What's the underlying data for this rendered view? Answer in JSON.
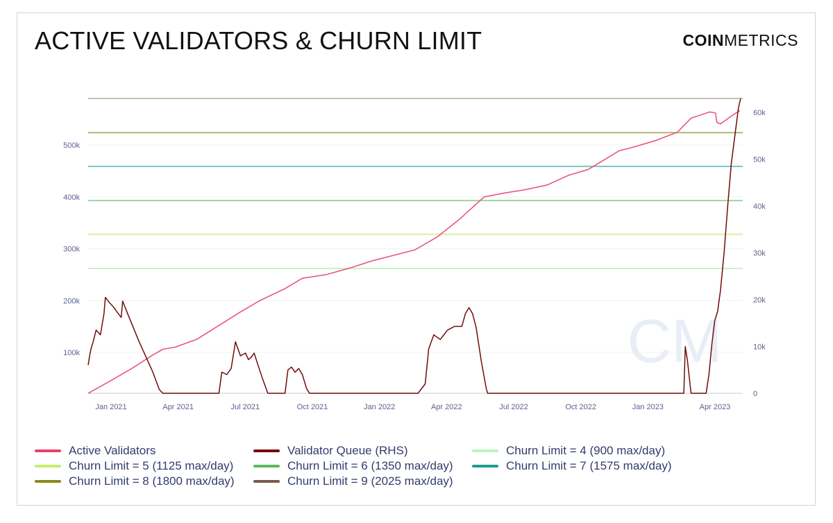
{
  "header": {
    "title": "ACTIVE VALIDATORS & CHURN LIMIT",
    "brand_bold": "COIN",
    "brand_light": "METRICS"
  },
  "watermark": "CM",
  "chart_data": {
    "type": "line",
    "x_tick_labels": [
      "Jan 2021",
      "Apr 2021",
      "Jul 2021",
      "Oct 2021",
      "Jan 2022",
      "Apr 2022",
      "Jul 2022",
      "Oct 2022",
      "Jan 2023",
      "Apr 2023"
    ],
    "x_range": [
      "2020-12-01",
      "2023-05-31"
    ],
    "y_left": {
      "label": "",
      "range": [
        21000,
        590000
      ],
      "ticks": [
        100000,
        200000,
        300000,
        400000,
        500000
      ],
      "tick_labels": [
        "100k",
        "200k",
        "300k",
        "400k",
        "500k"
      ]
    },
    "y_right": {
      "label": "",
      "range": [
        0,
        63000
      ],
      "ticks": [
        0,
        10000,
        20000,
        30000,
        40000,
        50000,
        60000
      ],
      "tick_labels": [
        "0",
        "10k",
        "20k",
        "30k",
        "40k",
        "50k",
        "60k"
      ]
    },
    "grid": true,
    "legend_placement": "bottom",
    "series": [
      {
        "name": "Active Validators",
        "axis": "left",
        "color": "#e8567c",
        "points": [
          [
            "2020-12-01",
            21000
          ],
          [
            "2021-01-01",
            45000
          ],
          [
            "2021-02-01",
            70000
          ],
          [
            "2021-03-01",
            95000
          ],
          [
            "2021-03-15",
            106000
          ],
          [
            "2021-04-01",
            110000
          ],
          [
            "2021-05-01",
            125000
          ],
          [
            "2021-06-01",
            152000
          ],
          [
            "2021-07-01",
            178000
          ],
          [
            "2021-07-28",
            200000
          ],
          [
            "2021-09-01",
            223000
          ],
          [
            "2021-09-25",
            243000
          ],
          [
            "2021-10-28",
            250000
          ],
          [
            "2021-12-01",
            263000
          ],
          [
            "2022-01-01",
            277000
          ],
          [
            "2022-02-01",
            288000
          ],
          [
            "2022-03-01",
            298000
          ],
          [
            "2022-04-01",
            323000
          ],
          [
            "2022-05-01",
            356000
          ],
          [
            "2022-06-05",
            400000
          ],
          [
            "2022-07-01",
            407000
          ],
          [
            "2022-08-01",
            414000
          ],
          [
            "2022-09-01",
            423000
          ],
          [
            "2022-10-01",
            442000
          ],
          [
            "2022-10-28",
            453000
          ],
          [
            "2022-11-15",
            468000
          ],
          [
            "2022-12-10",
            489000
          ],
          [
            "2023-01-01",
            497000
          ],
          [
            "2023-02-01",
            510000
          ],
          [
            "2023-03-01",
            525000
          ],
          [
            "2023-03-20",
            552000
          ],
          [
            "2023-04-15",
            564000
          ],
          [
            "2023-04-23",
            562000
          ],
          [
            "2023-04-25",
            544000
          ],
          [
            "2023-04-30",
            541000
          ],
          [
            "2023-05-15",
            556000
          ],
          [
            "2023-05-27",
            567000
          ]
        ]
      },
      {
        "name": "Validator Queue (RHS)",
        "axis": "right",
        "color": "#6e0c0c",
        "points": [
          [
            "2020-12-01",
            6000
          ],
          [
            "2020-12-03",
            8000
          ],
          [
            "2020-12-05",
            9500
          ],
          [
            "2020-12-08",
            11000
          ],
          [
            "2020-12-12",
            13500
          ],
          [
            "2020-12-18",
            12500
          ],
          [
            "2020-12-23",
            17000
          ],
          [
            "2020-12-25",
            20500
          ],
          [
            "2020-12-30",
            19500
          ],
          [
            "2021-01-05",
            18500
          ],
          [
            "2021-01-12",
            17000
          ],
          [
            "2021-01-16",
            16200
          ],
          [
            "2021-01-18",
            19700
          ],
          [
            "2021-01-25",
            17000
          ],
          [
            "2021-02-10",
            11000
          ],
          [
            "2021-03-01",
            4500
          ],
          [
            "2021-03-10",
            800
          ],
          [
            "2021-03-15",
            0
          ],
          [
            "2021-06-01",
            0
          ],
          [
            "2021-06-05",
            4500
          ],
          [
            "2021-06-12",
            4000
          ],
          [
            "2021-06-18",
            5300
          ],
          [
            "2021-06-24",
            11000
          ],
          [
            "2021-07-01",
            8000
          ],
          [
            "2021-07-08",
            8600
          ],
          [
            "2021-07-12",
            7200
          ],
          [
            "2021-07-16",
            7700
          ],
          [
            "2021-07-20",
            8600
          ],
          [
            "2021-07-25",
            6200
          ],
          [
            "2021-08-01",
            3000
          ],
          [
            "2021-08-08",
            0
          ],
          [
            "2021-09-01",
            0
          ],
          [
            "2021-09-05",
            5000
          ],
          [
            "2021-09-10",
            5600
          ],
          [
            "2021-09-15",
            4500
          ],
          [
            "2021-09-20",
            5300
          ],
          [
            "2021-09-25",
            4000
          ],
          [
            "2021-10-01",
            1000
          ],
          [
            "2021-10-05",
            0
          ],
          [
            "2022-03-05",
            0
          ],
          [
            "2022-03-15",
            2000
          ],
          [
            "2022-03-20",
            9500
          ],
          [
            "2022-03-27",
            12500
          ],
          [
            "2022-04-05",
            11500
          ],
          [
            "2022-04-15",
            13500
          ],
          [
            "2022-04-25",
            14300
          ],
          [
            "2022-05-05",
            14300
          ],
          [
            "2022-05-10",
            17000
          ],
          [
            "2022-05-15",
            18300
          ],
          [
            "2022-05-20",
            17000
          ],
          [
            "2022-05-25",
            14000
          ],
          [
            "2022-06-01",
            7000
          ],
          [
            "2022-06-08",
            1000
          ],
          [
            "2022-06-10",
            0
          ],
          [
            "2023-03-10",
            0
          ],
          [
            "2023-03-12",
            10000
          ],
          [
            "2023-03-15",
            7000
          ],
          [
            "2023-03-20",
            0
          ],
          [
            "2023-04-10",
            0
          ],
          [
            "2023-04-14",
            4000
          ],
          [
            "2023-04-18",
            10500
          ],
          [
            "2023-04-22",
            15500
          ],
          [
            "2023-04-26",
            17500
          ],
          [
            "2023-04-30",
            22000
          ],
          [
            "2023-05-05",
            30000
          ],
          [
            "2023-05-10",
            40000
          ],
          [
            "2023-05-15",
            49000
          ],
          [
            "2023-05-20",
            55000
          ],
          [
            "2023-05-25",
            61000
          ],
          [
            "2023-05-28",
            63000
          ]
        ]
      }
    ],
    "reference_lines": [
      {
        "name": "Churn Limit = 4 (900 max/day)",
        "value": 262000,
        "color": "#c8f3c8"
      },
      {
        "name": "Churn Limit = 5 (1125 max/day)",
        "value": 328000,
        "color": "#dcefa0"
      },
      {
        "name": "Churn Limit = 6 (1350 max/day)",
        "value": 393000,
        "color": "#9fd4a0"
      },
      {
        "name": "Churn Limit = 7 (1575 max/day)",
        "value": 459000,
        "color": "#7cc4c4"
      },
      {
        "name": "Churn Limit = 8 (1800 max/day)",
        "value": 524000,
        "color": "#b5b47a"
      },
      {
        "name": "Churn Limit = 9 (2025 max/day)",
        "value": 590000,
        "color": "#c9bfb2"
      }
    ],
    "legend": [
      {
        "label": "Active Validators",
        "color": "#e8416e"
      },
      {
        "label": "Validator Queue (RHS)",
        "color": "#7a0a0a"
      },
      {
        "label": "Churn Limit = 4 (900 max/day)",
        "color": "#b9f5c3"
      },
      {
        "label": "Churn Limit = 5 (1125 max/day)",
        "color": "#c7ef6a"
      },
      {
        "label": "Churn Limit = 6 (1350 max/day)",
        "color": "#5cb85c"
      },
      {
        "label": "Churn Limit = 7 (1575 max/day)",
        "color": "#1a9e8a"
      },
      {
        "label": "Churn Limit = 8 (1800 max/day)",
        "color": "#8a8a14"
      },
      {
        "label": "Churn Limit = 9 (2025 max/day)",
        "color": "#7a5a4e"
      }
    ]
  }
}
